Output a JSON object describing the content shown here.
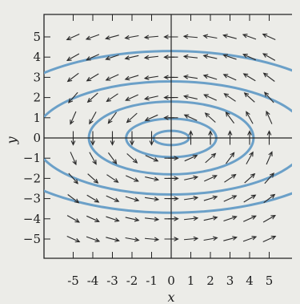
{
  "chart_data": {
    "type": "vector_field_with_orbits",
    "title": "",
    "xlabel": "x",
    "ylabel": "y",
    "xlim": [
      -6,
      6
    ],
    "ylim": [
      -6,
      6
    ],
    "x_ticks": [
      "-5",
      "-4",
      "-3",
      "-2",
      "-1",
      "0",
      "1",
      "2",
      "3",
      "4",
      "5"
    ],
    "y_ticks": [
      "5",
      "4",
      "3",
      "2",
      "1",
      "0",
      "−1",
      "−2",
      "−3",
      "−4",
      "−5"
    ],
    "x_tick_values": [
      -5,
      -4,
      -3,
      -2,
      -1,
      0,
      1,
      2,
      3,
      4,
      5
    ],
    "y_tick_values": [
      5,
      4,
      3,
      2,
      1,
      0,
      -1,
      -2,
      -3,
      -4,
      -5
    ],
    "grid": false,
    "vector_field": {
      "dx": "-y",
      "dy": "x",
      "sample_step": 1,
      "x_range": [
        -5,
        5
      ],
      "y_range": [
        -5,
        5
      ]
    },
    "orbits": [
      {
        "name": "",
        "rx": 0.9,
        "ry": 0.35,
        "y_center": 0
      },
      {
        "name": "",
        "rx": 2.3,
        "ry": 0.95,
        "y_center": 0
      },
      {
        "name": "",
        "rx": 4.2,
        "ry": 1.8,
        "y_center": 0
      },
      {
        "name": "",
        "rx": 7.0,
        "ry": 2.8,
        "y_center": 0
      },
      {
        "name": "",
        "rx": 9.5,
        "ry": 4.0,
        "y_center": 0.3
      }
    ],
    "colors": {
      "orbit": "#6ba0c8",
      "arrow": "#2a2a2a",
      "axis": "#222222",
      "background": "#ecece8"
    }
  }
}
